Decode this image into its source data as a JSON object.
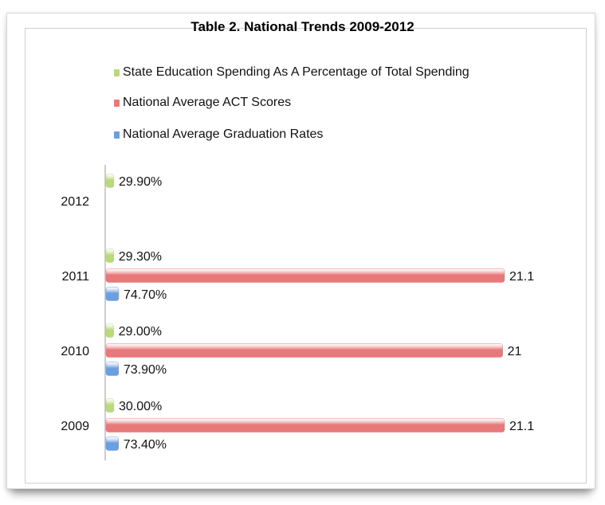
{
  "chart_data": {
    "type": "bar",
    "orientation": "horizontal",
    "title": "Table 2. National Trends 2009-2012",
    "xlabel": "",
    "ylabel": "",
    "categories": [
      "2012",
      "2011",
      "2010",
      "2009"
    ],
    "series": [
      {
        "name": "State Education Spending As A Percentage of Total Spending",
        "color": "#b9d97a",
        "values": [
          29.9,
          29.3,
          29.0,
          30.0
        ],
        "labels": [
          "29.90%",
          "29.30%",
          "29.00%",
          "30.00%"
        ]
      },
      {
        "name": "National Average ACT Scores",
        "color": "#e8787a",
        "values": [
          null,
          21.1,
          21,
          21.1
        ],
        "labels": [
          "",
          "21.1",
          "21",
          "21.1"
        ]
      },
      {
        "name": "National Average Graduation Rates",
        "color": "#6a9fe0",
        "values": [
          null,
          74.7,
          73.9,
          73.4
        ],
        "labels": [
          "",
          "74.70%",
          "73.90%",
          "73.40%"
        ]
      }
    ],
    "legend_position": "top",
    "grid": false
  }
}
